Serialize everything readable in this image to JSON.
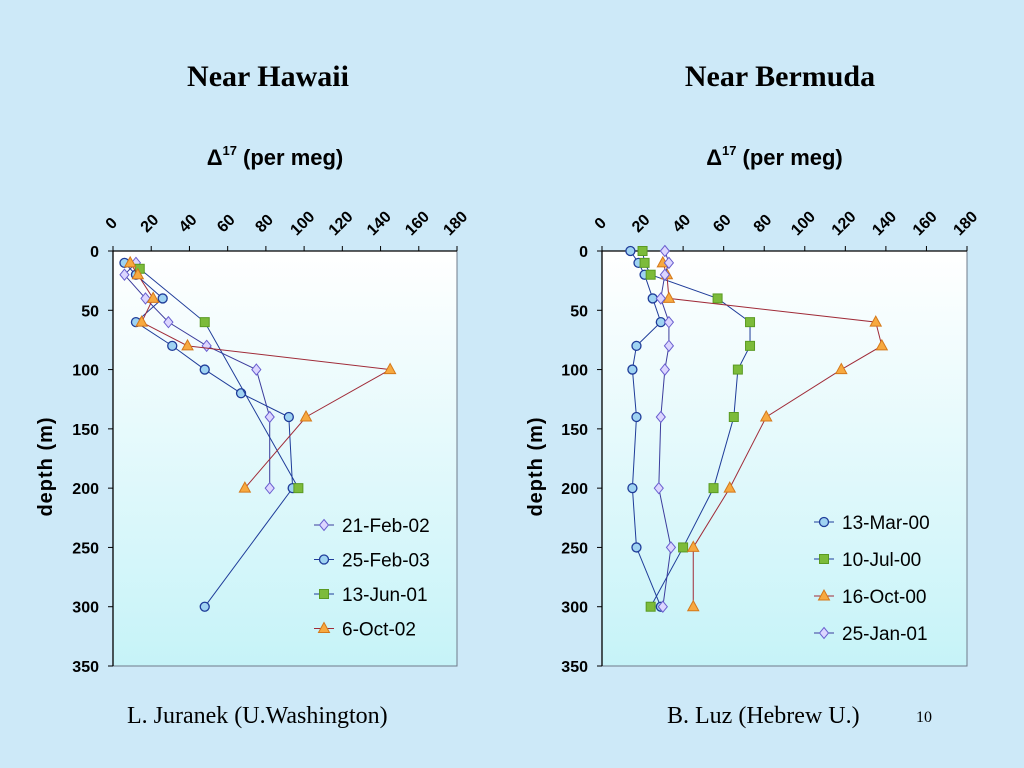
{
  "slide": {
    "title_left": "Near Hawaii",
    "title_right": "Near Bermuda",
    "credit_left": "L. Juranek (U.Washington)",
    "credit_right": "B. Luz (Hebrew U.)",
    "page_number": "10"
  },
  "colors": {
    "background": "#cde9f8",
    "series_blue": "#1f3c99",
    "series_diamond": "#3c3c9c",
    "series_green": "#7cbb3a",
    "series_orange": "#f7a940",
    "line_red": "#a02b38"
  },
  "chart_data": [
    {
      "type": "line",
      "title": "Near Hawaii",
      "xlabel": "Δ17 (per meg)",
      "ylabel": "depth (m)",
      "xlim": [
        0,
        180
      ],
      "ylim": [
        0,
        350
      ],
      "y_inverted": true,
      "x_axis_position": "top",
      "x_ticks": [
        0,
        20,
        40,
        60,
        80,
        100,
        120,
        140,
        160,
        180
      ],
      "y_ticks": [
        0,
        50,
        100,
        150,
        200,
        250,
        300,
        350
      ],
      "legend_position": "bottom-right",
      "series": [
        {
          "name": "21-Feb-02",
          "marker": "diamond",
          "points": [
            [
              12,
              10
            ],
            [
              6,
              20
            ],
            [
              17,
              40
            ],
            [
              29,
              60
            ],
            [
              49,
              80
            ],
            [
              75,
              100
            ],
            [
              82,
              140
            ],
            [
              82,
              200
            ]
          ]
        },
        {
          "name": "25-Feb-03",
          "marker": "circle",
          "points": [
            [
              6,
              10
            ],
            [
              12,
              20
            ],
            [
              26,
              40
            ],
            [
              12,
              60
            ],
            [
              31,
              80
            ],
            [
              48,
              100
            ],
            [
              67,
              120
            ],
            [
              92,
              140
            ],
            [
              94,
              200
            ],
            [
              48,
              300
            ]
          ]
        },
        {
          "name": "13-Jun-01",
          "marker": "square",
          "points": [
            [
              14,
              15
            ],
            [
              48,
              60
            ],
            [
              97,
              200
            ]
          ]
        },
        {
          "name": "6-Oct-02",
          "marker": "triangle",
          "points": [
            [
              9,
              10
            ],
            [
              13,
              20
            ],
            [
              21,
              40
            ],
            [
              15,
              60
            ],
            [
              39,
              80
            ],
            [
              145,
              100
            ],
            [
              101,
              140
            ],
            [
              69,
              200
            ]
          ]
        }
      ]
    },
    {
      "type": "line",
      "title": "Near Bermuda",
      "xlabel": "Δ17 (per meg)",
      "ylabel": "depth (m)",
      "xlim": [
        0,
        180
      ],
      "ylim": [
        0,
        350
      ],
      "y_inverted": true,
      "x_axis_position": "top",
      "x_ticks": [
        0,
        20,
        40,
        60,
        80,
        100,
        120,
        140,
        160,
        180
      ],
      "y_ticks": [
        0,
        50,
        100,
        150,
        200,
        250,
        300,
        350
      ],
      "legend_position": "bottom-right",
      "series": [
        {
          "name": "13-Mar-00",
          "marker": "circle",
          "points": [
            [
              14,
              0
            ],
            [
              18,
              10
            ],
            [
              21,
              20
            ],
            [
              25,
              40
            ],
            [
              29,
              60
            ],
            [
              17,
              80
            ],
            [
              15,
              100
            ],
            [
              17,
              140
            ],
            [
              15,
              200
            ],
            [
              17,
              250
            ],
            [
              29,
              300
            ]
          ]
        },
        {
          "name": "10-Jul-00",
          "marker": "square",
          "points": [
            [
              20,
              0
            ],
            [
              21,
              10
            ],
            [
              24,
              20
            ],
            [
              57,
              40
            ],
            [
              73,
              60
            ],
            [
              73,
              80
            ],
            [
              67,
              100
            ],
            [
              65,
              140
            ],
            [
              55,
              200
            ],
            [
              40,
              250
            ],
            [
              24,
              300
            ]
          ]
        },
        {
          "name": "16-Oct-00",
          "marker": "triangle",
          "points": [
            [
              30,
              10
            ],
            [
              32,
              20
            ],
            [
              33,
              40
            ],
            [
              135,
              60
            ],
            [
              138,
              80
            ],
            [
              118,
              100
            ],
            [
              81,
              140
            ],
            [
              63,
              200
            ],
            [
              45,
              250
            ],
            [
              45,
              300
            ]
          ]
        },
        {
          "name": "25-Jan-01",
          "marker": "diamond",
          "points": [
            [
              31,
              0
            ],
            [
              33,
              10
            ],
            [
              31,
              20
            ],
            [
              29,
              40
            ],
            [
              33,
              60
            ],
            [
              33,
              80
            ],
            [
              31,
              100
            ],
            [
              29,
              140
            ],
            [
              28,
              200
            ],
            [
              34,
              250
            ],
            [
              30,
              300
            ]
          ]
        }
      ]
    }
  ]
}
